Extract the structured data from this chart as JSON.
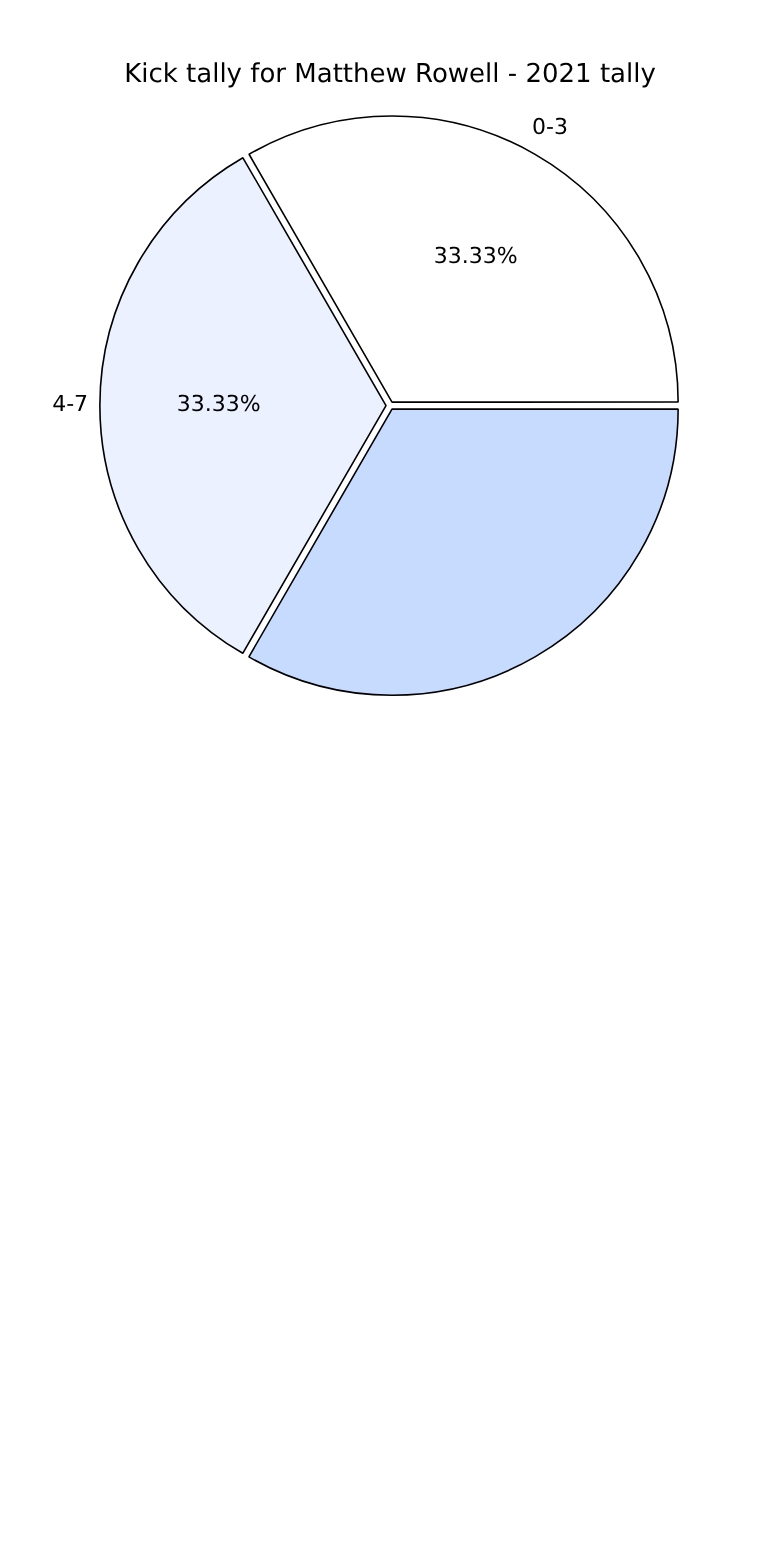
{
  "chart_data": {
    "type": "pie",
    "title": "Kick tally for Matthew Rowell - 2021 tally",
    "categories": [
      "0-3",
      "4-7",
      null
    ],
    "values": [
      33.33,
      33.33,
      33.34
    ],
    "colors": [
      "#ffffff",
      "#ebf1ff",
      "#c6dbff"
    ],
    "value_labels": [
      "33.33%",
      "33.33%",
      null
    ],
    "legend": false
  }
}
